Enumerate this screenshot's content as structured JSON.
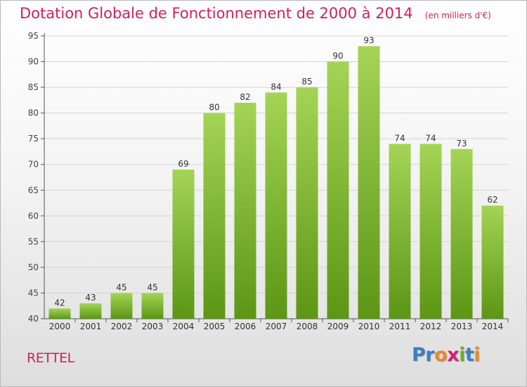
{
  "title": "Dotation Globale de Fonctionnement de 2000 à 2014",
  "subtitle": "(en milliers d'€)",
  "commune": "RETTEL",
  "logo": {
    "text": "Proxiti",
    "colors": [
      "#3a7fc4",
      "#3a7fc4",
      "#e8892a",
      "#d02080",
      "#6ab02c",
      "#3a7fc4",
      "#e8892a"
    ]
  },
  "colors": {
    "bar_top": "#a4d455",
    "bar_bottom": "#5c9614",
    "title": "#d0205a",
    "grid": "#d4d4d4"
  },
  "chart_data": {
    "type": "bar",
    "categories": [
      "2000",
      "2001",
      "2002",
      "2003",
      "2004",
      "2005",
      "2006",
      "2007",
      "2008",
      "2009",
      "2010",
      "2011",
      "2012",
      "2013",
      "2014"
    ],
    "values": [
      42,
      43,
      45,
      45,
      69,
      80,
      82,
      84,
      85,
      90,
      93,
      74,
      74,
      73,
      62
    ],
    "ylim": [
      40,
      95
    ],
    "yticks": [
      40,
      45,
      50,
      55,
      60,
      65,
      70,
      75,
      80,
      85,
      90,
      95
    ],
    "grid": true,
    "xlabel": "",
    "ylabel": ""
  }
}
